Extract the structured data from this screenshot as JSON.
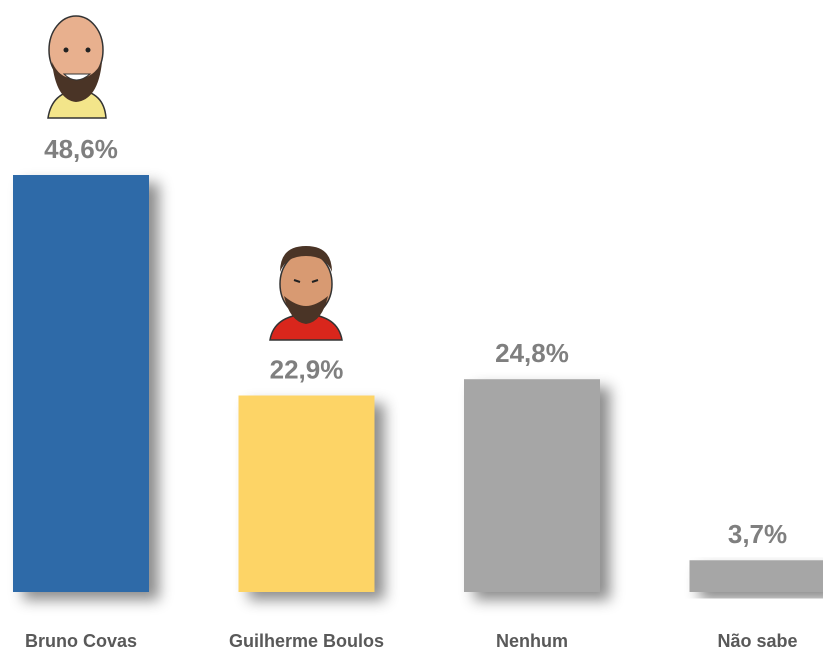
{
  "chart_data": {
    "type": "bar",
    "categories": [
      "Bruno Covas",
      "Guilherme Boulos",
      "Nenhum",
      "Não sabe"
    ],
    "values": [
      48.6,
      22.9,
      24.8,
      3.7
    ],
    "value_labels": [
      "48,6%",
      "22,9%",
      "24,8%",
      "3,7%"
    ],
    "colors": [
      "#2e6aa8",
      "#fdd466",
      "#a6a6a6",
      "#a6a6a6"
    ]
  }
}
